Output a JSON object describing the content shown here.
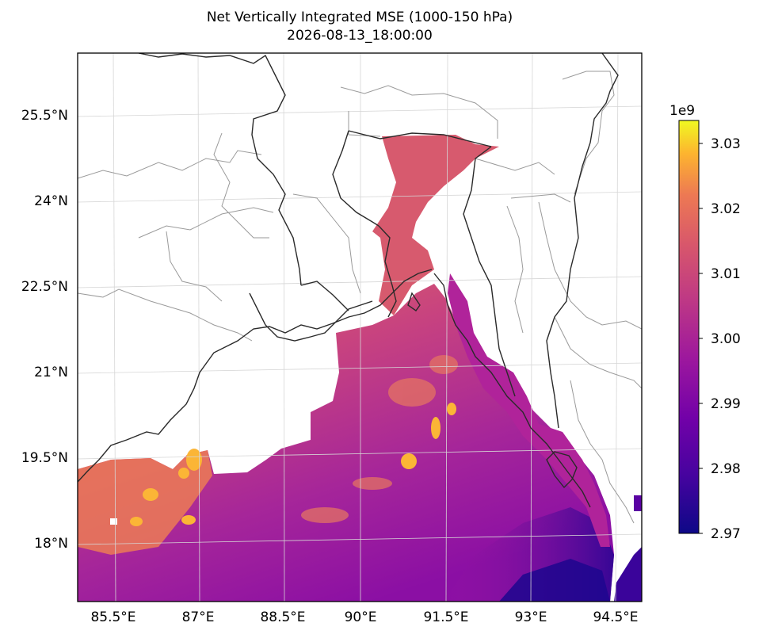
{
  "map": {
    "title": "Net Vertically Integrated MSE (1000-150 hPa)",
    "subtitle": "2026-08-13_18:00:00",
    "colormap": "plasma",
    "x_ticks": [
      "85.5°E",
      "87°E",
      "88.5°E",
      "90°E",
      "91.5°E",
      "93°E",
      "94.5°E"
    ],
    "y_ticks": [
      "25.5°N",
      "24°N",
      "22.5°N",
      "21°N",
      "19.5°N",
      "18°N"
    ],
    "colorbar": {
      "exponent_label": "1e9",
      "ticks": [
        "3.03",
        "3.02",
        "3.01",
        "3.00",
        "2.99",
        "2.98",
        "2.97"
      ],
      "range": [
        2.97,
        3.034
      ]
    },
    "colors": {
      "plasma_low": "#0d0887",
      "plasma_mid": "#cc4778",
      "plasma_high": "#f0f921",
      "coastline": "#2a2a2a",
      "admin_borders": "#9a9a9a"
    }
  }
}
